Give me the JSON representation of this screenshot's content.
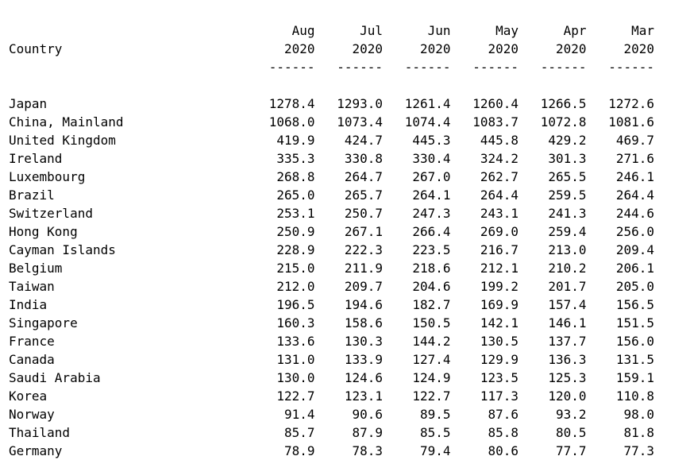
{
  "table": {
    "country_header": "Country",
    "months": [
      {
        "month": "Aug",
        "year": "2020"
      },
      {
        "month": "Jul",
        "year": "2020"
      },
      {
        "month": "Jun",
        "year": "2020"
      },
      {
        "month": "May",
        "year": "2020"
      },
      {
        "month": "Apr",
        "year": "2020"
      },
      {
        "month": "Mar",
        "year": "2020"
      }
    ],
    "separator": "------",
    "rows": [
      {
        "country": "Japan",
        "values": [
          "1278.4",
          "1293.0",
          "1261.4",
          "1260.4",
          "1266.5",
          "1272.6"
        ]
      },
      {
        "country": "China, Mainland",
        "values": [
          "1068.0",
          "1073.4",
          "1074.4",
          "1083.7",
          "1072.8",
          "1081.6"
        ]
      },
      {
        "country": "United Kingdom",
        "values": [
          "419.9",
          "424.7",
          "445.3",
          "445.8",
          "429.2",
          "469.7"
        ]
      },
      {
        "country": "Ireland",
        "values": [
          "335.3",
          "330.8",
          "330.4",
          "324.2",
          "301.3",
          "271.6"
        ]
      },
      {
        "country": "Luxembourg",
        "values": [
          "268.8",
          "264.7",
          "267.0",
          "262.7",
          "265.5",
          "246.1"
        ]
      },
      {
        "country": "Brazil",
        "values": [
          "265.0",
          "265.7",
          "264.1",
          "264.4",
          "259.5",
          "264.4"
        ]
      },
      {
        "country": "Switzerland",
        "values": [
          "253.1",
          "250.7",
          "247.3",
          "243.1",
          "241.3",
          "244.6"
        ]
      },
      {
        "country": "Hong Kong",
        "values": [
          "250.9",
          "267.1",
          "266.4",
          "269.0",
          "259.4",
          "256.0"
        ]
      },
      {
        "country": "Cayman Islands",
        "values": [
          "228.9",
          "222.3",
          "223.5",
          "216.7",
          "213.0",
          "209.4"
        ]
      },
      {
        "country": "Belgium",
        "values": [
          "215.0",
          "211.9",
          "218.6",
          "212.1",
          "210.2",
          "206.1"
        ]
      },
      {
        "country": "Taiwan",
        "values": [
          "212.0",
          "209.7",
          "204.6",
          "199.2",
          "201.7",
          "205.0"
        ]
      },
      {
        "country": "India",
        "values": [
          "196.5",
          "194.6",
          "182.7",
          "169.9",
          "157.4",
          "156.5"
        ]
      },
      {
        "country": "Singapore",
        "values": [
          "160.3",
          "158.6",
          "150.5",
          "142.1",
          "146.1",
          "151.5"
        ]
      },
      {
        "country": "France",
        "values": [
          "133.6",
          "130.3",
          "144.2",
          "130.5",
          "137.7",
          "156.0"
        ]
      },
      {
        "country": "Canada",
        "values": [
          "131.0",
          "133.9",
          "127.4",
          "129.9",
          "136.3",
          "131.5"
        ]
      },
      {
        "country": "Saudi Arabia",
        "values": [
          "130.0",
          "124.6",
          "124.9",
          "123.5",
          "125.3",
          "159.1"
        ]
      },
      {
        "country": "Korea",
        "values": [
          "122.7",
          "123.1",
          "122.7",
          "117.3",
          "120.0",
          "110.8"
        ]
      },
      {
        "country": "Norway",
        "values": [
          "91.4",
          "90.6",
          "89.5",
          "87.6",
          "93.2",
          "98.0"
        ]
      },
      {
        "country": "Thailand",
        "values": [
          "85.7",
          "87.9",
          "85.5",
          "85.8",
          "80.5",
          "81.8"
        ]
      },
      {
        "country": "Germany",
        "values": [
          "78.9",
          "78.3",
          "79.4",
          "80.6",
          "77.7",
          "77.3"
        ]
      }
    ]
  }
}
